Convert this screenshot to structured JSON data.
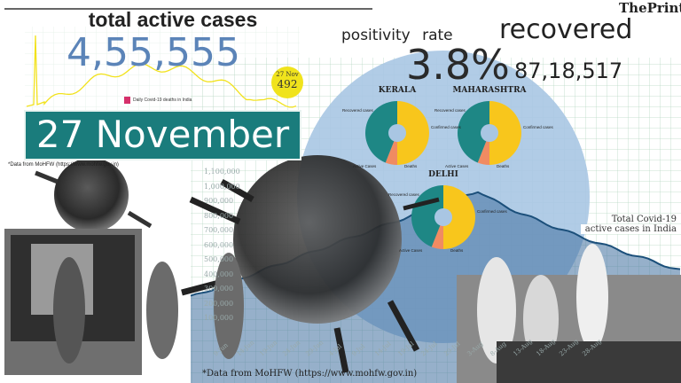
{
  "brand": "ThePrint",
  "headline": {
    "active_title": "total active cases",
    "active_value": "4,55,555",
    "positivity_label": "positivity rate",
    "positivity_value": "3.8%",
    "recovered_label": "recovered",
    "recovered_value": "87,18,517",
    "date_banner": "27 November"
  },
  "deaths_chart": {
    "legend": "Daily Covid-19 deaths in India",
    "callout_date": "27 Nov",
    "callout_value": "492",
    "source": "*Data from MoHFW (https://www.mohfw.gov.in)",
    "line_color": "#f2e21c",
    "legend_color": "#d6306b"
  },
  "active_chart": {
    "title_line1": "Total Covid-19",
    "title_line2": "active cases in India",
    "y_ticks": [
      "1,100,000",
      "1,000,000",
      "900,000",
      "800,000",
      "700,000",
      "600,000",
      "500,000",
      "400,000",
      "300,000",
      "200,000",
      "100,000"
    ],
    "x_ticks": [
      "9-Jun",
      "14-Jun",
      "19-Jun",
      "24-Jun",
      "29-Jun",
      "4-Jul",
      "9-Jul",
      "14-Jul",
      "19-Jul",
      "24-Jul",
      "29-Jul",
      "3-Aug",
      "8-Aug",
      "13-Aug",
      "18-Aug",
      "23-Aug",
      "28-Aug"
    ],
    "source": "*Data from MoHFW (https://www.mohfw.gov.in)",
    "line_color": "#1b4f7a"
  },
  "states": [
    {
      "name": "KERALA",
      "labels": [
        "Recovered cases",
        "Confirmed cases",
        "Active Cases",
        "Deaths"
      ]
    },
    {
      "name": "MAHARASHTRA",
      "labels": [
        "Recovered cases",
        "Confirmed cases",
        "Active Cases",
        "Deaths"
      ]
    },
    {
      "name": "DELHI",
      "labels": [
        "Recovered cases",
        "Confirmed cases",
        "Active Cases",
        "Deaths"
      ]
    }
  ],
  "colors": {
    "banner": "#1a7c7c",
    "active_value": "#5b84b8",
    "pie_recovered": "#1e8785",
    "pie_confirmed": "#f8c61c",
    "pie_active": "#f08b62",
    "circle": "#a9c6e3"
  }
}
